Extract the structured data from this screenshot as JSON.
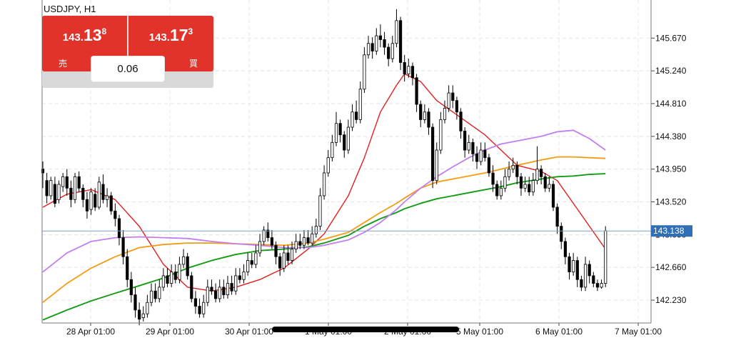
{
  "symbol": "USDJPY, H1",
  "trade_panel": {
    "sell": {
      "price_small": "143.",
      "price_big": "13",
      "price_sup": "8",
      "label": "売"
    },
    "buy": {
      "price_small": "143.",
      "price_big": "17",
      "price_sup": "3",
      "label": "買"
    },
    "spread": "0.06"
  },
  "colors": {
    "up_candle": "#ffffff",
    "down_candle": "#000000",
    "ma_red": "#e51d1d",
    "ma_orange": "#f39c12",
    "ma_green": "#159a15",
    "ma_violet": "#c17ef0",
    "current_price_tag": "#2f6fb5",
    "trade_button": "#e2332b"
  },
  "chart_data": {
    "type": "candlestick",
    "title": "USDJPY, H1",
    "y_ticks": [
      "145.670",
      "145.240",
      "144.810",
      "144.380",
      "143.950",
      "143.520",
      "143.090",
      "142.660",
      "142.230"
    ],
    "x_ticks": [
      "28 Apr 01:00",
      "29 Apr 01:00",
      "30 Apr 01:00",
      "1 May 01:00",
      "2 May 01:00",
      "5 May 01:00",
      "6 May 01:00",
      "7 May 01:00"
    ],
    "ylim": [
      141.93,
      146.17
    ],
    "current_price": "143.138",
    "grid": true,
    "candles": [
      [
        143.95,
        143.9,
        144.05,
        143.7
      ],
      [
        143.8,
        143.6,
        143.9,
        143.5
      ],
      [
        143.6,
        143.8,
        143.85,
        143.55
      ],
      [
        143.75,
        143.5,
        143.85,
        143.45
      ],
      [
        143.55,
        143.75,
        143.8,
        143.5
      ],
      [
        143.72,
        143.85,
        143.9,
        143.65
      ],
      [
        143.85,
        143.7,
        143.95,
        143.6
      ],
      [
        143.7,
        143.55,
        143.8,
        143.45
      ],
      [
        143.55,
        143.85,
        143.9,
        143.5
      ],
      [
        143.85,
        143.7,
        143.92,
        143.65
      ],
      [
        143.7,
        143.55,
        143.75,
        143.45
      ],
      [
        143.55,
        143.4,
        143.65,
        143.3
      ],
      [
        143.42,
        143.65,
        143.7,
        143.35
      ],
      [
        143.62,
        143.45,
        143.7,
        143.4
      ],
      [
        143.45,
        143.78,
        143.85,
        143.42
      ],
      [
        143.75,
        143.55,
        143.88,
        143.5
      ],
      [
        143.55,
        143.6,
        143.7,
        143.45
      ],
      [
        143.6,
        143.4,
        143.65,
        143.35
      ],
      [
        143.4,
        143.3,
        143.5,
        143.2
      ],
      [
        143.3,
        143.05,
        143.35,
        142.95
      ],
      [
        143.05,
        142.8,
        143.15,
        142.7
      ],
      [
        142.8,
        142.5,
        142.9,
        142.4
      ],
      [
        142.5,
        142.3,
        142.6,
        142.2
      ],
      [
        142.3,
        142.1,
        142.4,
        142.0
      ],
      [
        142.1,
        141.98,
        142.2,
        141.9
      ],
      [
        142.0,
        142.05,
        142.15,
        141.95
      ],
      [
        142.05,
        142.2,
        142.3,
        142.0
      ],
      [
        142.2,
        142.35,
        142.45,
        142.15
      ],
      [
        142.35,
        142.25,
        142.45,
        142.2
      ],
      [
        142.25,
        142.4,
        142.5,
        142.2
      ],
      [
        142.4,
        142.55,
        142.65,
        142.35
      ],
      [
        142.55,
        142.45,
        142.65,
        142.4
      ],
      [
        142.45,
        142.6,
        142.7,
        142.4
      ],
      [
        142.6,
        142.5,
        142.7,
        142.45
      ],
      [
        142.5,
        142.7,
        142.8,
        142.45
      ],
      [
        142.7,
        142.8,
        142.9,
        142.65
      ],
      [
        142.8,
        142.55,
        142.85,
        142.5
      ],
      [
        142.55,
        142.25,
        142.6,
        142.2
      ],
      [
        142.25,
        142.15,
        142.35,
        142.05
      ],
      [
        142.15,
        142.05,
        142.25,
        142.0
      ],
      [
        142.05,
        142.2,
        142.3,
        142.0
      ],
      [
        142.2,
        142.4,
        142.5,
        142.15
      ],
      [
        142.4,
        142.35,
        142.5,
        142.3
      ],
      [
        142.35,
        142.25,
        142.45,
        142.2
      ],
      [
        142.25,
        142.4,
        142.5,
        142.2
      ],
      [
        142.4,
        142.3,
        142.5,
        142.25
      ],
      [
        142.3,
        142.45,
        142.55,
        142.25
      ],
      [
        142.45,
        142.35,
        142.55,
        142.3
      ],
      [
        142.35,
        142.55,
        142.65,
        142.3
      ],
      [
        142.55,
        142.5,
        142.65,
        142.45
      ],
      [
        142.5,
        142.6,
        142.7,
        142.45
      ],
      [
        142.6,
        142.75,
        142.85,
        142.55
      ],
      [
        142.75,
        142.7,
        142.85,
        142.65
      ],
      [
        142.7,
        142.85,
        142.95,
        142.65
      ],
      [
        142.85,
        143.0,
        143.1,
        142.8
      ],
      [
        143.0,
        143.15,
        143.2,
        142.95
      ],
      [
        143.15,
        143.05,
        143.25,
        143.0
      ],
      [
        143.05,
        142.95,
        143.15,
        142.9
      ],
      [
        142.95,
        142.8,
        143.0,
        142.7
      ],
      [
        142.8,
        142.65,
        142.85,
        142.55
      ],
      [
        142.65,
        142.85,
        142.95,
        142.6
      ],
      [
        142.85,
        142.75,
        142.95,
        142.7
      ],
      [
        142.75,
        142.9,
        143.0,
        142.7
      ],
      [
        142.9,
        143.0,
        143.1,
        142.85
      ],
      [
        143.0,
        142.95,
        143.1,
        142.9
      ],
      [
        142.95,
        143.05,
        143.15,
        142.9
      ],
      [
        143.05,
        142.98,
        143.15,
        142.95
      ],
      [
        142.98,
        143.1,
        143.2,
        142.95
      ],
      [
        143.1,
        143.2,
        143.3,
        143.05
      ],
      [
        143.2,
        143.6,
        143.7,
        143.15
      ],
      [
        143.6,
        143.9,
        144.0,
        143.55
      ],
      [
        143.9,
        144.1,
        144.2,
        143.85
      ],
      [
        144.1,
        144.3,
        144.4,
        144.05
      ],
      [
        144.3,
        144.55,
        144.7,
        144.25
      ],
      [
        144.55,
        144.4,
        144.6,
        144.3
      ],
      [
        144.4,
        144.2,
        144.45,
        144.1
      ],
      [
        144.2,
        144.5,
        144.6,
        144.15
      ],
      [
        144.5,
        144.7,
        144.8,
        144.45
      ],
      [
        144.7,
        144.6,
        144.85,
        144.55
      ],
      [
        144.6,
        145.0,
        145.1,
        144.55
      ],
      [
        145.0,
        145.45,
        145.55,
        144.95
      ],
      [
        145.45,
        145.6,
        145.7,
        145.4
      ],
      [
        145.6,
        145.5,
        145.68,
        145.4
      ],
      [
        145.5,
        145.7,
        145.8,
        145.45
      ],
      [
        145.7,
        145.65,
        145.85,
        145.55
      ],
      [
        145.65,
        145.55,
        145.75,
        145.45
      ],
      [
        145.55,
        145.4,
        145.6,
        145.3
      ],
      [
        145.4,
        145.6,
        145.7,
        145.35
      ],
      [
        145.6,
        145.9,
        146.05,
        145.55
      ],
      [
        145.9,
        145.35,
        145.95,
        145.25
      ],
      [
        145.35,
        145.2,
        145.45,
        145.1
      ],
      [
        145.2,
        145.3,
        145.4,
        145.15
      ],
      [
        145.3,
        145.15,
        145.35,
        145.05
      ],
      [
        145.15,
        144.8,
        145.2,
        144.7
      ],
      [
        144.8,
        144.6,
        144.85,
        144.5
      ],
      [
        144.6,
        144.7,
        144.8,
        144.55
      ],
      [
        144.7,
        144.5,
        144.75,
        144.4
      ],
      [
        144.5,
        143.8,
        144.55,
        143.7
      ],
      [
        143.8,
        144.2,
        144.3,
        143.75
      ],
      [
        144.2,
        144.6,
        144.7,
        144.15
      ],
      [
        144.6,
        144.75,
        144.85,
        144.55
      ],
      [
        144.75,
        144.95,
        145.05,
        144.7
      ],
      [
        144.95,
        144.85,
        145.05,
        144.75
      ],
      [
        144.85,
        144.7,
        144.9,
        144.6
      ],
      [
        144.7,
        144.45,
        144.75,
        144.35
      ],
      [
        144.45,
        144.2,
        144.5,
        144.1
      ],
      [
        144.2,
        144.3,
        144.4,
        144.15
      ],
      [
        144.3,
        144.15,
        144.35,
        144.05
      ],
      [
        144.15,
        144.05,
        144.25,
        143.95
      ],
      [
        144.05,
        144.2,
        144.3,
        144.0
      ],
      [
        144.2,
        144.1,
        144.3,
        144.05
      ],
      [
        144.1,
        143.9,
        144.15,
        143.85
      ],
      [
        143.9,
        143.75,
        144.0,
        143.65
      ],
      [
        143.75,
        143.6,
        143.8,
        143.55
      ],
      [
        143.6,
        143.7,
        143.8,
        143.55
      ],
      [
        143.7,
        143.85,
        143.95,
        143.65
      ],
      [
        143.85,
        143.95,
        144.05,
        143.8
      ],
      [
        143.95,
        144.0,
        144.1,
        143.9
      ],
      [
        144.0,
        143.85,
        144.05,
        143.75
      ],
      [
        143.85,
        143.7,
        143.9,
        143.6
      ],
      [
        143.7,
        143.75,
        143.85,
        143.65
      ],
      [
        143.75,
        143.65,
        143.85,
        143.6
      ],
      [
        143.65,
        143.8,
        143.9,
        143.6
      ],
      [
        143.8,
        143.95,
        144.25,
        143.75
      ],
      [
        143.95,
        143.85,
        144.0,
        143.75
      ],
      [
        143.85,
        143.7,
        143.9,
        143.65
      ],
      [
        143.7,
        143.75,
        143.85,
        143.65
      ],
      [
        143.75,
        143.45,
        143.8,
        143.4
      ],
      [
        143.45,
        143.2,
        143.5,
        143.1
      ],
      [
        143.2,
        143.0,
        143.25,
        142.9
      ],
      [
        143.0,
        142.8,
        143.05,
        142.7
      ],
      [
        142.8,
        142.6,
        142.85,
        142.5
      ],
      [
        142.6,
        142.75,
        142.85,
        142.55
      ],
      [
        142.75,
        142.5,
        142.8,
        142.4
      ],
      [
        142.5,
        142.4,
        142.55,
        142.35
      ],
      [
        142.4,
        142.7,
        142.8,
        142.35
      ],
      [
        142.7,
        142.55,
        142.75,
        142.45
      ],
      [
        142.55,
        142.45,
        142.6,
        142.4
      ],
      [
        142.45,
        142.4,
        142.5,
        142.35
      ],
      [
        142.4,
        142.45,
        142.5,
        142.38
      ],
      [
        142.45,
        143.14,
        143.2,
        142.4
      ]
    ],
    "series": [
      {
        "color": "red",
        "values": [
          [
            0,
            143.45
          ],
          [
            6,
            143.62
          ],
          [
            12,
            143.68
          ],
          [
            18,
            143.55
          ],
          [
            24,
            143.2
          ],
          [
            30,
            142.7
          ],
          [
            36,
            142.4
          ],
          [
            42,
            142.35
          ],
          [
            48,
            142.4
          ],
          [
            54,
            142.5
          ],
          [
            60,
            142.65
          ],
          [
            66,
            142.9
          ],
          [
            70,
            143.1
          ],
          [
            76,
            143.6
          ],
          [
            80,
            144.1
          ],
          [
            84,
            144.7
          ],
          [
            88,
            145.05
          ],
          [
            90,
            145.2
          ],
          [
            94,
            145.1
          ],
          [
            98,
            144.85
          ],
          [
            102,
            144.7
          ],
          [
            106,
            144.55
          ],
          [
            110,
            144.4
          ],
          [
            114,
            144.2
          ],
          [
            118,
            144.0
          ],
          [
            124,
            143.92
          ],
          [
            128,
            143.8
          ],
          [
            132,
            143.5
          ],
          [
            136,
            143.2
          ],
          [
            140,
            142.9
          ]
        ]
      },
      {
        "color": "orange",
        "values": [
          [
            0,
            142.2
          ],
          [
            6,
            142.45
          ],
          [
            12,
            142.65
          ],
          [
            18,
            142.8
          ],
          [
            24,
            142.92
          ],
          [
            30,
            142.96
          ],
          [
            36,
            142.98
          ],
          [
            42,
            142.98
          ],
          [
            48,
            142.97
          ],
          [
            54,
            142.96
          ],
          [
            60,
            142.95
          ],
          [
            66,
            142.98
          ],
          [
            70,
            143.03
          ],
          [
            76,
            143.12
          ],
          [
            80,
            143.25
          ],
          [
            84,
            143.38
          ],
          [
            88,
            143.5
          ],
          [
            90,
            143.57
          ],
          [
            94,
            143.7
          ],
          [
            98,
            143.78
          ],
          [
            102,
            143.82
          ],
          [
            106,
            143.86
          ],
          [
            110,
            143.9
          ],
          [
            114,
            143.95
          ],
          [
            118,
            144.0
          ],
          [
            124,
            144.07
          ],
          [
            128,
            144.11
          ],
          [
            132,
            144.11
          ],
          [
            136,
            144.1
          ],
          [
            140,
            144.09
          ]
        ]
      },
      {
        "color": "green",
        "values": [
          [
            0,
            141.97
          ],
          [
            6,
            142.1
          ],
          [
            12,
            142.22
          ],
          [
            18,
            142.32
          ],
          [
            24,
            142.42
          ],
          [
            30,
            142.52
          ],
          [
            36,
            142.65
          ],
          [
            42,
            142.75
          ],
          [
            48,
            142.83
          ],
          [
            54,
            142.88
          ],
          [
            60,
            142.9
          ],
          [
            66,
            142.93
          ],
          [
            70,
            142.98
          ],
          [
            76,
            143.08
          ],
          [
            80,
            143.2
          ],
          [
            84,
            143.3
          ],
          [
            88,
            143.38
          ],
          [
            90,
            143.43
          ],
          [
            94,
            143.5
          ],
          [
            98,
            143.56
          ],
          [
            102,
            143.6
          ],
          [
            106,
            143.64
          ],
          [
            110,
            143.68
          ],
          [
            114,
            143.72
          ],
          [
            118,
            143.77
          ],
          [
            124,
            143.82
          ],
          [
            128,
            143.85
          ],
          [
            132,
            143.86
          ],
          [
            136,
            143.88
          ],
          [
            140,
            143.89
          ]
        ]
      },
      {
        "color": "violet",
        "values": [
          [
            0,
            142.6
          ],
          [
            6,
            142.85
          ],
          [
            12,
            143.0
          ],
          [
            18,
            143.05
          ],
          [
            24,
            143.06
          ],
          [
            30,
            143.05
          ],
          [
            36,
            143.04
          ],
          [
            42,
            143.0
          ],
          [
            48,
            142.97
          ],
          [
            54,
            142.95
          ],
          [
            60,
            142.92
          ],
          [
            66,
            142.92
          ],
          [
            70,
            142.95
          ],
          [
            76,
            143.02
          ],
          [
            80,
            143.12
          ],
          [
            84,
            143.25
          ],
          [
            88,
            143.42
          ],
          [
            90,
            143.52
          ],
          [
            94,
            143.7
          ],
          [
            98,
            143.85
          ],
          [
            102,
            143.98
          ],
          [
            106,
            144.1
          ],
          [
            110,
            144.2
          ],
          [
            114,
            144.28
          ],
          [
            118,
            144.32
          ],
          [
            124,
            144.38
          ],
          [
            128,
            144.44
          ],
          [
            132,
            144.46
          ],
          [
            136,
            144.35
          ],
          [
            140,
            144.2
          ]
        ]
      }
    ]
  }
}
